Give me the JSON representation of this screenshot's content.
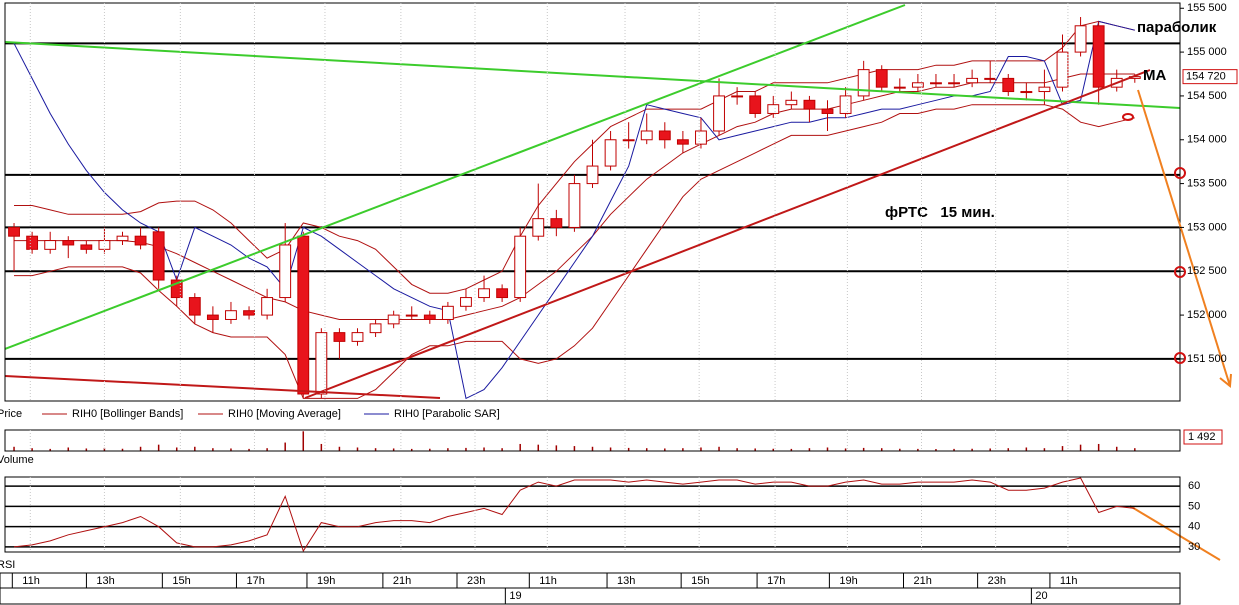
{
  "chart_data": [
    {
      "type": "candlestick",
      "name": "Price",
      "open": [
        153000,
        152900,
        152750,
        152850,
        152800,
        152750,
        152850,
        152900,
        152950,
        152400,
        152200,
        152000,
        151950,
        152050,
        152000,
        152200,
        152900,
        151100,
        151800,
        151700,
        151800,
        151900,
        152000,
        152000,
        151950,
        152100,
        152200,
        152300,
        152200,
        152900,
        153100,
        153000,
        153500,
        153700,
        154000,
        154000,
        154100,
        154000,
        153950,
        154100,
        154500,
        154500,
        154300,
        154400,
        154450,
        154350,
        154300,
        154500,
        154800,
        154600,
        154600,
        154650,
        154650,
        154650,
        154700,
        154700,
        154550,
        154550,
        154600,
        155000,
        155300,
        154600,
        154700
      ],
      "high": [
        153050,
        152950,
        152950,
        152900,
        152850,
        153000,
        152950,
        153000,
        153000,
        152450,
        152250,
        152100,
        152150,
        152100,
        152300,
        153050,
        152950,
        151850,
        151850,
        151850,
        151950,
        152050,
        152100,
        152050,
        152150,
        152300,
        152450,
        152350,
        153000,
        153500,
        153200,
        153600,
        154000,
        154100,
        154200,
        154300,
        154200,
        154100,
        154250,
        154700,
        154600,
        154550,
        154500,
        154550,
        154500,
        154450,
        154600,
        154900,
        154850,
        154700,
        154750,
        154750,
        154750,
        154800,
        154900,
        154750,
        154650,
        154800,
        155200,
        155400,
        155350,
        154800,
        154750
      ],
      "low": [
        152500,
        152700,
        152700,
        152650,
        152700,
        152700,
        152800,
        152750,
        152300,
        152100,
        151900,
        151800,
        151900,
        151950,
        151950,
        152150,
        151050,
        151050,
        151500,
        151650,
        151750,
        151850,
        151950,
        151900,
        151900,
        152050,
        152150,
        152150,
        152150,
        152850,
        152900,
        152950,
        153450,
        153650,
        153900,
        153950,
        153900,
        153850,
        153900,
        154050,
        154400,
        154250,
        154250,
        154350,
        154200,
        154100,
        154250,
        154450,
        154550,
        154550,
        154550,
        154600,
        154600,
        154600,
        154650,
        154500,
        154450,
        154400,
        154550,
        154950,
        154400,
        154550,
        154650
      ],
      "close": [
        152900,
        152750,
        152850,
        152800,
        152750,
        152850,
        152900,
        152800,
        152400,
        152200,
        152000,
        151950,
        152050,
        152000,
        152200,
        152800,
        151100,
        151800,
        151700,
        151800,
        151900,
        152000,
        152000,
        151950,
        152100,
        152200,
        152300,
        152200,
        152900,
        153100,
        153000,
        153500,
        153700,
        154000,
        154000,
        154100,
        154000,
        153950,
        154100,
        154500,
        154500,
        154300,
        154400,
        154450,
        154350,
        154300,
        154500,
        154800,
        154600,
        154600,
        154650,
        154650,
        154650,
        154700,
        154700,
        154550,
        154550,
        154600,
        155000,
        155300,
        154600,
        154700,
        154720
      ],
      "color_down": "#e8141c",
      "color_up": "#ffffff",
      "outline": "#c00000",
      "last_label": "154 720",
      "series": [
        {
          "name": "RIH0 [Bollinger Bands]",
          "color": "#b01010",
          "upper": [
            153250,
            153250,
            153200,
            153150,
            153150,
            153150,
            153150,
            153180,
            153280,
            153300,
            153300,
            153200,
            153050,
            152850,
            152650,
            152750,
            153050,
            153000,
            152900,
            152850,
            152750,
            152550,
            152350,
            152250,
            152250,
            152300,
            152400,
            152500,
            152900,
            153250,
            153500,
            153750,
            153950,
            154150,
            154250,
            154350,
            154350,
            154350,
            154350,
            154450,
            154550,
            154550,
            154650,
            154650,
            154650,
            154650,
            154700,
            154750,
            154800,
            154800,
            154800,
            154850,
            154850,
            154900,
            154900,
            154900,
            154900,
            154900,
            155050,
            155300,
            155350,
            155300,
            155250
          ],
          "lower": [
            152450,
            152450,
            152500,
            152550,
            152550,
            152550,
            152550,
            152480,
            152280,
            152100,
            151900,
            151800,
            151750,
            151750,
            151750,
            151550,
            151050,
            151050,
            151050,
            151050,
            151150,
            151350,
            151550,
            151650,
            151650,
            151700,
            151700,
            151700,
            151500,
            151450,
            151500,
            151650,
            151850,
            152150,
            152450,
            152750,
            153050,
            153350,
            153550,
            153650,
            153750,
            153850,
            153950,
            154050,
            154050,
            154050,
            154100,
            154150,
            154200,
            154300,
            154300,
            154350,
            154350,
            154400,
            154400,
            154400,
            154400,
            154400,
            154350,
            154200,
            154150,
            154200,
            154250
          ]
        },
        {
          "name": "RIH0 [Moving Average]",
          "color": "#b01010",
          "values": [
            152850,
            152850,
            152850,
            152850,
            152850,
            152850,
            152850,
            152830,
            152780,
            152700,
            152600,
            152500,
            152400,
            152300,
            152200,
            152150,
            152050,
            152000,
            151950,
            151950,
            151950,
            151950,
            151950,
            151950,
            151950,
            152000,
            152050,
            152100,
            152200,
            152350,
            152500,
            152700,
            152900,
            153150,
            153350,
            153550,
            153700,
            153850,
            153950,
            154050,
            154150,
            154200,
            154300,
            154350,
            154350,
            154350,
            154400,
            154450,
            154500,
            154550,
            154550,
            154600,
            154600,
            154650,
            154650,
            154650,
            154650,
            154650,
            154700,
            154750,
            154750,
            154750,
            154750
          ]
        },
        {
          "name": "RIH0 [Parabolic SAR]",
          "color": "#1a1aa0",
          "values": [
            155100,
            154700,
            154300,
            153950,
            153650,
            153400,
            153200,
            153050,
            152950,
            152400,
            153000,
            152900,
            152800,
            152650,
            152550,
            152300,
            153000,
            152900,
            152750,
            152600,
            152450,
            152300,
            152200,
            152100,
            152050,
            151050,
            151150,
            151400,
            151700,
            152000,
            152300,
            152600,
            152900,
            153300,
            153700,
            154400,
            154350,
            154300,
            154250,
            154000,
            154050,
            154100,
            154150,
            154200,
            154200,
            154250,
            154250,
            154300,
            154350,
            154350,
            154400,
            154450,
            154500,
            154500,
            154550,
            154950,
            154950,
            154900,
            154400,
            154450,
            155350,
            155300,
            155250
          ]
        }
      ],
      "levels": [
        155100,
        153600,
        153000,
        152500,
        151500
      ],
      "ylim": [
        151020,
        155560
      ],
      "yticks": [
        {
          "value": 151500,
          "label": "151 500"
        },
        {
          "value": 152000,
          "label": "152 000"
        },
        {
          "value": 152500,
          "label": "152 500"
        },
        {
          "value": 153000,
          "label": "153 000"
        },
        {
          "value": 153500,
          "label": "153 500"
        },
        {
          "value": 154000,
          "label": "154 000"
        },
        {
          "value": 154500,
          "label": "154 500"
        },
        {
          "value": 155000,
          "label": "155 000"
        },
        {
          "value": 155500,
          "label": "155 500"
        }
      ],
      "xlim": [
        -0.5,
        64.5
      ],
      "xticks": [
        {
          "value": 0.9,
          "label": "11h"
        },
        {
          "value": 5,
          "label": "13h"
        },
        {
          "value": 9.2,
          "label": "15h"
        },
        {
          "value": 13.3,
          "label": "17h"
        },
        {
          "value": 17.2,
          "label": "19h"
        },
        {
          "value": 21.4,
          "label": "21h"
        },
        {
          "value": 25.5,
          "label": "23h"
        },
        {
          "value": 29.5,
          "label": "11h"
        },
        {
          "value": 33.8,
          "label": "13h"
        },
        {
          "value": 37.9,
          "label": "15h"
        },
        {
          "value": 42.1,
          "label": "17h"
        },
        {
          "value": 46.1,
          "label": "19h"
        },
        {
          "value": 50.2,
          "label": "21h"
        },
        {
          "value": 54.3,
          "label": "23h"
        },
        {
          "value": 58.3,
          "label": "11h"
        }
      ],
      "date_ticks": [
        {
          "value": 27.4,
          "label": "19"
        },
        {
          "value": 56.5,
          "label": "20"
        }
      ],
      "grid": true,
      "annotations": [
        "параболик",
        "MA",
        "фРТС   15 мин."
      ]
    },
    {
      "type": "bar",
      "name": "Volume",
      "color": "#a00000",
      "values": [
        300,
        200,
        150,
        250,
        180,
        220,
        160,
        300,
        450,
        250,
        300,
        200,
        180,
        150,
        200,
        600,
        1400,
        500,
        300,
        250,
        200,
        180,
        150,
        160,
        200,
        220,
        250,
        200,
        500,
        450,
        400,
        350,
        300,
        250,
        220,
        200,
        180,
        200,
        250,
        300,
        200,
        180,
        160,
        150,
        200,
        250,
        180,
        220,
        200,
        160,
        150,
        140,
        150,
        160,
        180,
        200,
        250,
        200,
        350,
        450,
        500,
        300,
        200
      ],
      "ylim": [
        0,
        1492
      ],
      "yticks": [
        {
          "value": 1492,
          "label": "1 492"
        }
      ]
    },
    {
      "type": "line",
      "name": "RSI",
      "color": "#b01010",
      "values": [
        30,
        31,
        33,
        36,
        38,
        40,
        42,
        45,
        40,
        32,
        30,
        30,
        31,
        33,
        36,
        55,
        28,
        42,
        40,
        40,
        42,
        43,
        43,
        42,
        45,
        47,
        49,
        46,
        58,
        62,
        60,
        63,
        63,
        63,
        62,
        63,
        62,
        61,
        62,
        63,
        63,
        61,
        62,
        62,
        60,
        60,
        62,
        63,
        61,
        61,
        62,
        62,
        62,
        63,
        62,
        58,
        58,
        59,
        62,
        64,
        47,
        50,
        49
      ],
      "ylim": [
        27.5,
        64.5
      ],
      "yticks": [
        30,
        40,
        50,
        60
      ],
      "grid": true
    }
  ]
}
